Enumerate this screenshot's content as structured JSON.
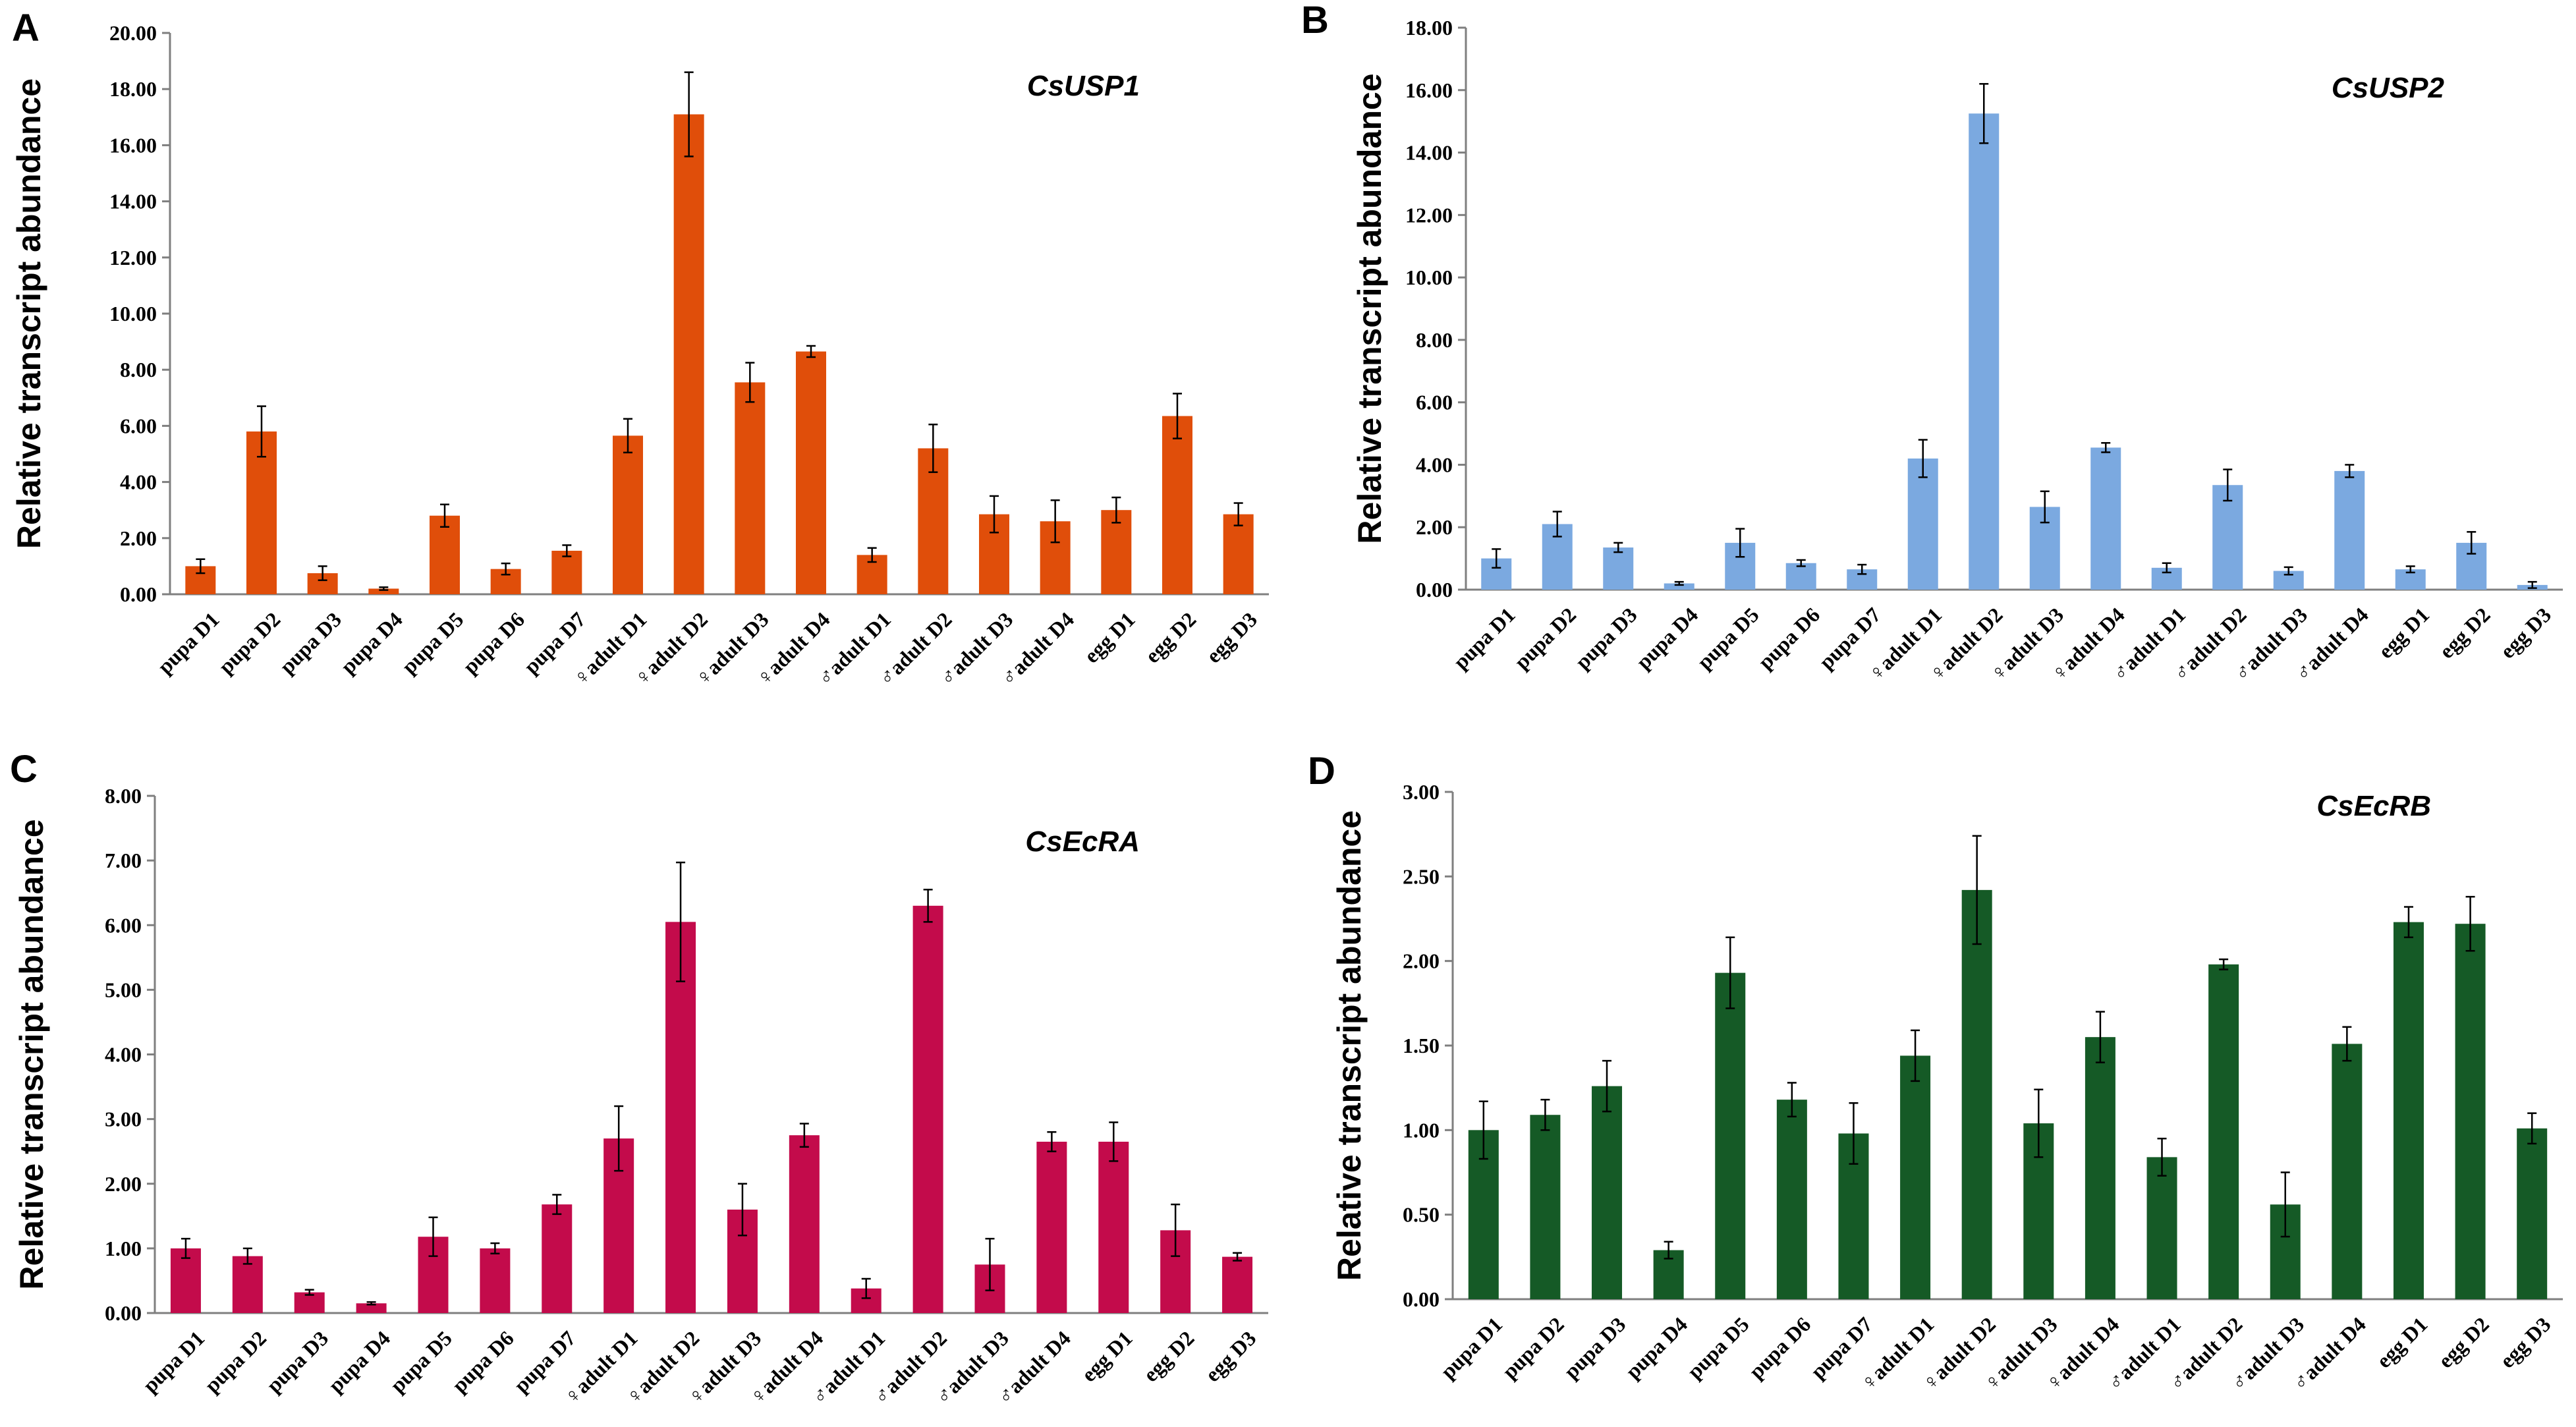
{
  "chart_data": [
    {
      "type": "bar",
      "panel": "A",
      "title": "CsUSP1",
      "ylabel": "Relative transcript abundance",
      "xlabel": "",
      "ylim": [
        0,
        20
      ],
      "yticks": [
        "0.00",
        "2.00",
        "4.00",
        "6.00",
        "8.00",
        "10.00",
        "12.00",
        "14.00",
        "16.00",
        "18.00",
        "20.00"
      ],
      "color": "#E04E0A",
      "categories": [
        "pupa D1",
        "pupa D2",
        "pupa D3",
        "pupa D4",
        "pupa D5",
        "pupa D6",
        "pupa D7",
        "♀adult D1",
        "♀adult D2",
        "♀adult D3",
        "♀adult D4",
        "♂adult D1",
        "♂adult D2",
        "♂adult D3",
        "♂adult D4",
        "egg D1",
        "egg D2",
        "egg D3"
      ],
      "values": [
        1.0,
        5.8,
        0.75,
        0.2,
        2.8,
        0.9,
        1.55,
        5.65,
        17.1,
        7.55,
        8.65,
        1.4,
        5.2,
        2.85,
        2.6,
        3.0,
        6.35,
        2.85
      ],
      "errors": [
        0.25,
        0.9,
        0.25,
        0.05,
        0.4,
        0.2,
        0.2,
        0.6,
        1.5,
        0.7,
        0.2,
        0.25,
        0.85,
        0.65,
        0.75,
        0.45,
        0.8,
        0.4
      ]
    },
    {
      "type": "bar",
      "panel": "B",
      "title": "CsUSP2",
      "ylabel": "Relative transcript abundance",
      "xlabel": "",
      "ylim": [
        0,
        18
      ],
      "yticks": [
        "0.00",
        "2.00",
        "4.00",
        "6.00",
        "8.00",
        "10.00",
        "12.00",
        "14.00",
        "16.00",
        "18.00"
      ],
      "color": "#7BA9E0",
      "categories": [
        "pupa D1",
        "pupa D2",
        "pupa D3",
        "pupa D4",
        "pupa D5",
        "pupa D6",
        "pupa D7",
        "♀adult D1",
        "♀adult D2",
        "♀adult D3",
        "♀adult D4",
        "♂adult D1",
        "♂adult D2",
        "♂adult D3",
        "♂adult D4",
        "egg D1",
        "egg D2",
        "egg D3"
      ],
      "values": [
        1.0,
        2.1,
        1.35,
        0.2,
        1.5,
        0.85,
        0.65,
        4.2,
        15.25,
        2.65,
        4.55,
        0.7,
        3.35,
        0.6,
        3.8,
        0.65,
        1.5,
        0.15
      ],
      "errors": [
        0.3,
        0.4,
        0.15,
        0.05,
        0.45,
        0.1,
        0.15,
        0.6,
        0.95,
        0.5,
        0.15,
        0.15,
        0.5,
        0.12,
        0.2,
        0.1,
        0.35,
        0.1
      ]
    },
    {
      "type": "bar",
      "panel": "C",
      "title": "CsEcRA",
      "ylabel": "Relative transcript abundance",
      "xlabel": "",
      "ylim": [
        0,
        8
      ],
      "yticks": [
        "0.00",
        "1.00",
        "2.00",
        "3.00",
        "4.00",
        "5.00",
        "6.00",
        "7.00",
        "8.00"
      ],
      "color": "#C30B4B",
      "categories": [
        "pupa D1",
        "pupa D2",
        "pupa D3",
        "pupa D4",
        "pupa D5",
        "pupa D6",
        "pupa D7",
        "♀adult D1",
        "♀adult D2",
        "♀adult D3",
        "♀adult D4",
        "♂adult D1",
        "♂adult D2",
        "♂adult D3",
        "♂adult D4",
        "egg D1",
        "egg D2",
        "egg D3"
      ],
      "values": [
        1.0,
        0.88,
        0.32,
        0.15,
        1.18,
        1.0,
        1.68,
        2.7,
        6.05,
        1.6,
        2.75,
        0.38,
        6.3,
        0.75,
        2.65,
        2.65,
        1.28,
        0.87
      ],
      "errors": [
        0.15,
        0.12,
        0.04,
        0.02,
        0.3,
        0.08,
        0.15,
        0.5,
        0.92,
        0.4,
        0.18,
        0.15,
        0.25,
        0.4,
        0.15,
        0.3,
        0.4,
        0.06
      ]
    },
    {
      "type": "bar",
      "panel": "D",
      "title": "CsEcRB",
      "ylabel": "Relative transcript abundance",
      "xlabel": "",
      "ylim": [
        0,
        3
      ],
      "yticks": [
        "0.00",
        "0.50",
        "1.00",
        "1.50",
        "2.00",
        "2.50",
        "3.00"
      ],
      "color": "#155A26",
      "categories": [
        "pupa D1",
        "pupa D2",
        "pupa D3",
        "pupa D4",
        "pupa D5",
        "pupa D6",
        "pupa D7",
        "♀adult D1",
        "♀adult D2",
        "♀adult D3",
        "♀adult D4",
        "♂adult D1",
        "♂adult D2",
        "♂adult D3",
        "♂adult D4",
        "egg D1",
        "egg D2",
        "egg D3"
      ],
      "values": [
        1.0,
        1.09,
        1.26,
        0.29,
        1.93,
        1.18,
        0.98,
        1.44,
        2.42,
        1.04,
        1.55,
        0.84,
        1.98,
        0.56,
        1.51,
        2.23,
        2.22,
        1.01
      ],
      "errors": [
        0.17,
        0.09,
        0.15,
        0.05,
        0.21,
        0.1,
        0.18,
        0.15,
        0.32,
        0.2,
        0.15,
        0.11,
        0.03,
        0.19,
        0.1,
        0.09,
        0.16,
        0.09
      ]
    }
  ]
}
